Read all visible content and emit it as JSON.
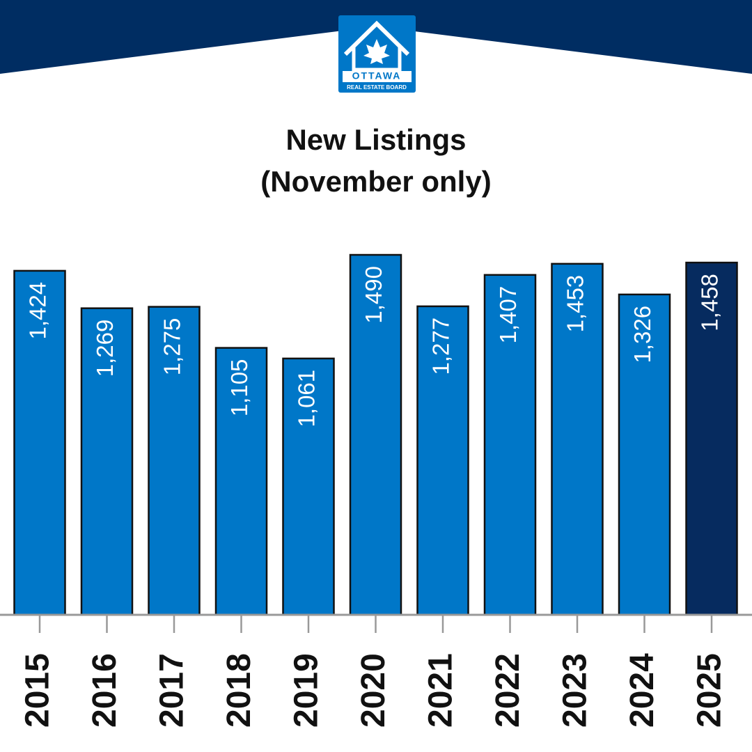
{
  "logo": {
    "name": "OTTAWA",
    "subtitle": "REAL ESTATE BOARD"
  },
  "chart_data": {
    "type": "bar",
    "title": "New Listings",
    "subtitle": "(November only)",
    "categories": [
      "2015",
      "2016",
      "2017",
      "2018",
      "2019",
      "2020",
      "2021",
      "2022",
      "2023",
      "2024",
      "2025"
    ],
    "values": [
      1424,
      1269,
      1275,
      1105,
      1061,
      1490,
      1277,
      1407,
      1453,
      1326,
      1458
    ],
    "value_labels": [
      "1,424",
      "1,269",
      "1,275",
      "1,105",
      "1,061",
      "1,490",
      "1,277",
      "1,407",
      "1,453",
      "1,326",
      "1,458"
    ],
    "colors": [
      "#0077c8",
      "#0077c8",
      "#0077c8",
      "#0077c8",
      "#0077c8",
      "#0077c8",
      "#0077c8",
      "#0077c8",
      "#0077c8",
      "#0077c8",
      "#062b5f"
    ]
  }
}
